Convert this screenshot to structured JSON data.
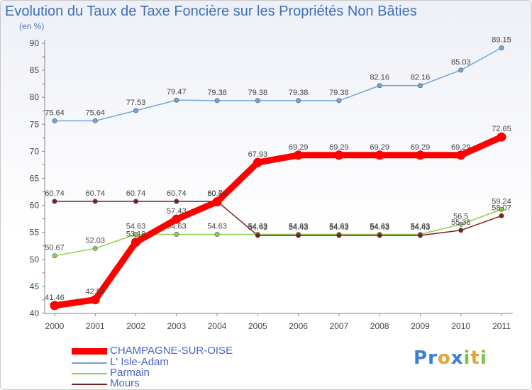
{
  "title": "Evolution du Taux de Taxe Foncière sur les Propriétés Non Bâties",
  "unit": "(en %)",
  "logo": {
    "text": "Proxiti",
    "letters": [
      {
        "ch": "P",
        "color": "#3a7fd1"
      },
      {
        "ch": "r",
        "color": "#3a7fd1"
      },
      {
        "ch": "o",
        "color": "#e8a23a"
      },
      {
        "ch": "x",
        "color": "#3a7fd1"
      },
      {
        "ch": "i",
        "color": "#7cc04a"
      },
      {
        "ch": "t",
        "color": "#e8a23a"
      },
      {
        "ch": "i",
        "color": "#7cc04a"
      }
    ]
  },
  "chart_data": {
    "type": "line",
    "title": "Evolution du Taux de Taxe Foncière sur les Propriétés Non Bâties",
    "ylabel": "(en %)",
    "xlabel": "",
    "x": [
      "2000",
      "2001",
      "2002",
      "2003",
      "2004",
      "2005",
      "2006",
      "2007",
      "2008",
      "2009",
      "2010",
      "2011"
    ],
    "ylim": [
      40,
      90
    ],
    "yticks": [
      40,
      45,
      50,
      55,
      60,
      65,
      70,
      75,
      80,
      85,
      90
    ],
    "grid": false,
    "legend": "bottom-left",
    "series": [
      {
        "name": "CHAMPAGNE-SUR-OISE",
        "color": "#ff0000",
        "values": [
          41.46,
          42.54,
          53.18,
          57.43,
          60.65,
          67.93,
          69.29,
          69.29,
          69.29,
          69.29,
          69.29,
          72.65
        ],
        "labels": [
          "41.46",
          "42.54",
          "53.18",
          "57.43",
          "60.65",
          "67.93",
          "69.29",
          "69.29",
          "69.29",
          "69.29",
          "69.29",
          "72.65"
        ]
      },
      {
        "name": "L' Isle-Adam",
        "color": "#6fa6dc",
        "values": [
          75.64,
          75.64,
          77.53,
          79.47,
          79.38,
          79.38,
          79.38,
          79.38,
          82.16,
          82.16,
          85.03,
          89.15
        ],
        "labels": [
          "75.64",
          "75.64",
          "77.53",
          "79.47",
          "79.38",
          "79.38",
          "79.38",
          "79.38",
          "82.16",
          "82.16",
          "85.03",
          "89.15"
        ]
      },
      {
        "name": "Parmain",
        "color": "#8fd14f",
        "values": [
          50.67,
          52.03,
          54.63,
          54.63,
          54.63,
          54.63,
          54.63,
          54.63,
          54.63,
          54.63,
          56.5,
          59.24
        ],
        "labels": [
          "50.67",
          "52.03",
          "54.63",
          "54.63",
          "54.63",
          "54.63",
          "54.63",
          "54.63",
          "54.63",
          "54.63",
          "56.5",
          "59.24"
        ]
      },
      {
        "name": "Mours",
        "color": "#7a2020",
        "values": [
          60.74,
          60.74,
          60.74,
          60.74,
          60.74,
          54.43,
          54.43,
          54.43,
          54.43,
          54.43,
          55.38,
          58.07
        ],
        "labels": [
          "60.74",
          "60.74",
          "60.74",
          "60.74",
          "60.74",
          "54.43",
          "54.43",
          "54.43",
          "54.43",
          "54.43",
          "55.38",
          "58.07"
        ]
      }
    ]
  }
}
